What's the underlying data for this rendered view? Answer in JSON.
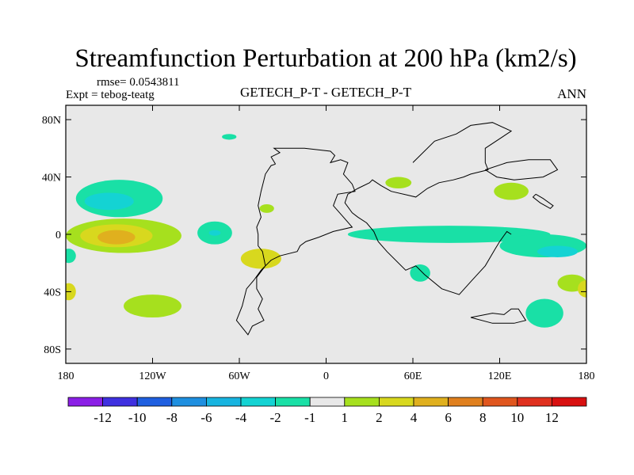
{
  "chart_data": {
    "type": "heatmap",
    "title": "Streamfunction Perturbation at 200 hPa (km2/s)",
    "subtitle_left_top": "rmse= 0.0543811",
    "subtitle_left": "Expt = tebog-teatg",
    "subtitle_center": "GETECH_P-T - GETECH_P-T",
    "subtitle_right": "ANN",
    "x_ticks": [
      {
        "value": -180,
        "label": "180"
      },
      {
        "value": -120,
        "label": "120W"
      },
      {
        "value": -60,
        "label": "60W"
      },
      {
        "value": 0,
        "label": "0"
      },
      {
        "value": 60,
        "label": "60E"
      },
      {
        "value": 120,
        "label": "120E"
      },
      {
        "value": 180,
        "label": "180"
      }
    ],
    "y_ticks": [
      {
        "value": 80,
        "label": "80N"
      },
      {
        "value": 40,
        "label": "40N"
      },
      {
        "value": 0,
        "label": "0"
      },
      {
        "value": -40,
        "label": "40S"
      },
      {
        "value": -80,
        "label": "80S"
      }
    ],
    "xlim": [
      -180,
      180
    ],
    "ylim": [
      -90,
      90
    ],
    "colorbar": {
      "levels": [
        "-12",
        "-10",
        "-8",
        "-6",
        "-4",
        "-2",
        "-1",
        "1",
        "2",
        "4",
        "6",
        "8",
        "10",
        "12"
      ],
      "colors": [
        "#8b1fe6",
        "#3f30e0",
        "#1f5fe0",
        "#1e8fe0",
        "#17b4e0",
        "#14d3d3",
        "#19e0a6",
        "#e8e8e8",
        "#a6e01e",
        "#d8d81e",
        "#e0b01e",
        "#e0801e",
        "#e0561e",
        "#e0301e",
        "#d81010"
      ]
    },
    "contour_regions": [
      {
        "name": "north-pacific-negative",
        "lon": -143,
        "lat": 25,
        "rlon": 30,
        "rlat": 13,
        "bin": 6
      },
      {
        "name": "north-pacific-negative-core",
        "lon": -150,
        "lat": 23,
        "rlon": 17,
        "rlat": 6,
        "bin": 5
      },
      {
        "name": "tropical-pacific-positive",
        "lon": -140,
        "lat": -1,
        "rlon": 40,
        "rlat": 12,
        "bin": 8
      },
      {
        "name": "tropical-pacific-positive-mid",
        "lon": -145,
        "lat": -1,
        "rlon": 25,
        "rlat": 8,
        "bin": 9
      },
      {
        "name": "tropical-pacific-positive-core",
        "lon": -145,
        "lat": -2,
        "rlon": 13,
        "rlat": 5,
        "bin": 10
      },
      {
        "name": "south-pacific-positive",
        "lon": -45,
        "lat": -17,
        "rlon": 14,
        "rlat": 7,
        "bin": 9
      },
      {
        "name": "central-pacific-negative",
        "lon": -77,
        "lat": 1,
        "rlon": 12,
        "rlat": 8,
        "bin": 6
      },
      {
        "name": "central-pacific-negative-core",
        "lon": -77,
        "lat": 1,
        "rlon": 4,
        "rlat": 2,
        "bin": 5
      },
      {
        "name": "equatorial-indian-negative",
        "lon": 85,
        "lat": 0,
        "rlon": 70,
        "rlat": 6,
        "bin": 6
      },
      {
        "name": "east-indian-negative",
        "lon": 150,
        "lat": -8,
        "rlon": 30,
        "rlat": 8,
        "bin": 6
      },
      {
        "name": "east-indian-negative-core",
        "lon": 160,
        "lat": -12,
        "rlon": 14,
        "rlat": 4,
        "bin": 5
      },
      {
        "name": "africa-negative",
        "lon": 65,
        "lat": -27,
        "rlon": 7,
        "rlat": 6,
        "bin": 6
      },
      {
        "name": "north-america-positive",
        "lon": 128,
        "lat": 30,
        "rlon": 12,
        "rlat": 6,
        "bin": 8
      },
      {
        "name": "south-atlantic-positive",
        "lon": 151,
        "lat": -55,
        "rlon": 13,
        "rlat": 10,
        "bin": 6
      },
      {
        "name": "east-pacific-positive",
        "lon": 170,
        "lat": -34,
        "rlon": 10,
        "rlat": 6,
        "bin": 8
      },
      {
        "name": "north-atlantic-negative",
        "lon": -67,
        "lat": 68,
        "rlon": 5,
        "rlat": 2,
        "bin": 6
      },
      {
        "name": "arabia-positive",
        "lon": 50,
        "lat": 36,
        "rlon": 9,
        "rlat": 4,
        "bin": 8
      },
      {
        "name": "mid-atlantic-positive",
        "lon": -41,
        "lat": 18,
        "rlon": 5,
        "rlat": 3,
        "bin": 8
      },
      {
        "name": "south-atlantic-negative",
        "lon": -120,
        "lat": -50,
        "rlon": 20,
        "rlat": 8,
        "bin": 8
      },
      {
        "name": "west-edge-negative",
        "lon": -178,
        "lat": -15,
        "rlon": 5,
        "rlat": 5,
        "bin": 6
      },
      {
        "name": "west-edge-positive",
        "lon": -178,
        "lat": -40,
        "rlon": 5,
        "rlat": 6,
        "bin": 9
      },
      {
        "name": "east-edge-positive",
        "lon": 180,
        "lat": -38,
        "rlon": 6,
        "rlat": 6,
        "bin": 9
      }
    ],
    "coastlines": [
      {
        "name": "america-outline",
        "points": [
          [
            -35,
            49
          ],
          [
            -38,
            54
          ],
          [
            -32,
            57
          ],
          [
            -36,
            60
          ],
          [
            -15,
            60
          ],
          [
            3,
            58
          ],
          [
            6,
            55
          ],
          [
            3,
            50
          ],
          [
            10,
            52
          ],
          [
            15,
            50
          ],
          [
            12,
            42
          ],
          [
            18,
            35
          ],
          [
            20,
            30
          ],
          [
            8,
            28
          ],
          [
            5,
            20
          ],
          [
            12,
            12
          ],
          [
            18,
            5
          ],
          [
            5,
            2
          ],
          [
            -5,
            -2
          ],
          [
            -14,
            -5
          ],
          [
            -18,
            -8
          ],
          [
            -20,
            -12
          ],
          [
            -32,
            -15
          ],
          [
            -38,
            -18
          ],
          [
            -45,
            -25
          ],
          [
            -50,
            -32
          ],
          [
            -55,
            -38
          ],
          [
            -58,
            -50
          ],
          [
            -62,
            -60
          ],
          [
            -54,
            -70
          ],
          [
            -51,
            -64
          ],
          [
            -43,
            -60
          ],
          [
            -47,
            -52
          ],
          [
            -44,
            -45
          ],
          [
            -48,
            -38
          ],
          [
            -48,
            -30
          ],
          [
            -42,
            -22
          ],
          [
            -44,
            -12
          ],
          [
            -47,
            -8
          ],
          [
            -47,
            0
          ],
          [
            -48,
            5
          ],
          [
            -45,
            12
          ],
          [
            -47,
            20
          ],
          [
            -45,
            30
          ],
          [
            -42,
            42
          ],
          [
            -38,
            48
          ],
          [
            -35,
            49
          ]
        ]
      },
      {
        "name": "eurasia-outline",
        "points": [
          [
            60,
            50
          ],
          [
            75,
            65
          ],
          [
            90,
            70
          ],
          [
            100,
            76
          ],
          [
            115,
            78
          ],
          [
            128,
            72
          ],
          [
            110,
            60
          ],
          [
            110,
            50
          ],
          [
            112,
            45
          ],
          [
            100,
            42
          ],
          [
            95,
            40
          ],
          [
            88,
            38
          ],
          [
            78,
            36
          ],
          [
            70,
            32
          ],
          [
            62,
            26
          ],
          [
            45,
            30
          ],
          [
            38,
            34
          ],
          [
            32,
            38
          ],
          [
            30,
            36
          ],
          [
            22,
            32
          ],
          [
            15,
            28
          ],
          [
            13,
            22
          ],
          [
            18,
            15
          ],
          [
            22,
            12
          ],
          [
            28,
            8
          ],
          [
            33,
            2
          ],
          [
            36,
            -5
          ],
          [
            42,
            -12
          ],
          [
            55,
            -25
          ],
          [
            62,
            -22
          ],
          [
            68,
            -28
          ],
          [
            80,
            -38
          ],
          [
            92,
            -42
          ],
          [
            100,
            -33
          ],
          [
            110,
            -22
          ],
          [
            117,
            -10
          ],
          [
            120,
            -5
          ],
          [
            125,
            2
          ],
          [
            128,
            0
          ]
        ]
      },
      {
        "name": "antarctic-peninsula",
        "points": [
          [
            100,
            -58
          ],
          [
            115,
            -55
          ],
          [
            123,
            -56
          ],
          [
            128,
            -52
          ],
          [
            133,
            -52
          ],
          [
            138,
            -60
          ],
          [
            130,
            -62
          ],
          [
            115,
            -62
          ],
          [
            100,
            -58
          ]
        ]
      },
      {
        "name": "north-island",
        "points": [
          [
            110,
            45
          ],
          [
            125,
            50
          ],
          [
            140,
            52
          ],
          [
            155,
            52
          ],
          [
            160,
            45
          ],
          [
            150,
            40
          ],
          [
            130,
            38
          ],
          [
            118,
            40
          ],
          [
            110,
            45
          ]
        ]
      },
      {
        "name": "east-peninsula",
        "points": [
          [
            145,
            28
          ],
          [
            150,
            25
          ],
          [
            157,
            20
          ],
          [
            155,
            18
          ],
          [
            148,
            22
          ],
          [
            143,
            26
          ],
          [
            145,
            28
          ]
        ]
      }
    ]
  }
}
